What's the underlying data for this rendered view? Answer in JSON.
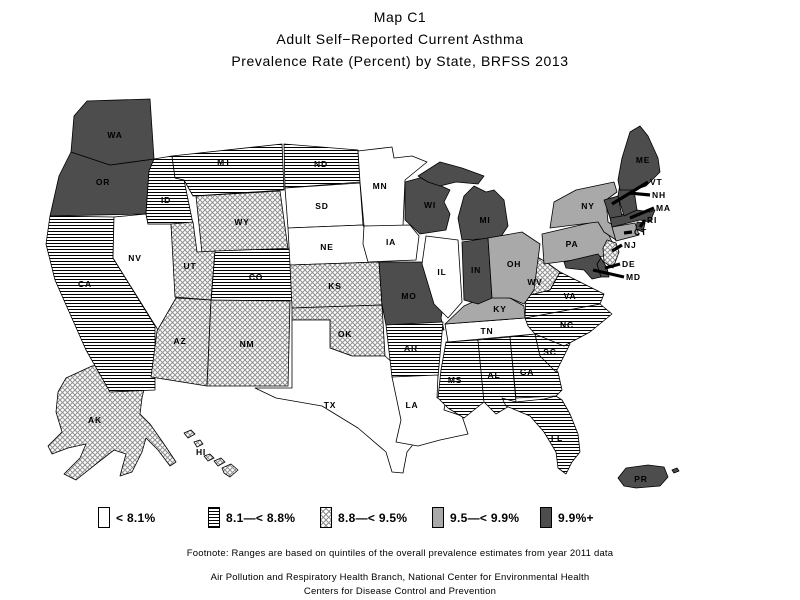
{
  "title": {
    "line1": "Map C1",
    "line2": "Adult Self−Reported Current Asthma",
    "line3": "Prevalence Rate (Percent) by State, BRFSS 2013"
  },
  "colors": {
    "quintile1_white": "#ffffff",
    "quintile4_gray": "#a9a9a9",
    "quintile5_dark": "#4d4d4d",
    "pattern_line_black": "#000000",
    "crosshatch_gray": "#909090",
    "border": "#000000"
  },
  "legend": {
    "items": [
      {
        "label": "< 8.1%",
        "quintile": 1,
        "pattern": "empty-white"
      },
      {
        "label": "8.1—< 8.8%",
        "quintile": 2,
        "pattern": "horizontal-lines"
      },
      {
        "label": "8.8—< 9.5%",
        "quintile": 3,
        "pattern": "crosshatch"
      },
      {
        "label": "9.5—< 9.9%",
        "quintile": 4,
        "pattern": "solid-gray"
      },
      {
        "label": "9.9%+",
        "quintile": 5,
        "pattern": "solid-dark"
      }
    ]
  },
  "footnote": "Footnote: Ranges are based on quintiles of the overall prevalence estimates from year 2011 data",
  "credits": {
    "line1": "Air Pollution and Respiratory Health Branch, National Center for Environmental Health",
    "line2": "Centers for Disease Control and Prevention"
  },
  "map": {
    "states": [
      {
        "abbr": "AK",
        "quintile": 3
      },
      {
        "abbr": "HI",
        "quintile": 3
      },
      {
        "abbr": "CA",
        "quintile": 2
      },
      {
        "abbr": "OR",
        "quintile": 5
      },
      {
        "abbr": "WA",
        "quintile": 5
      },
      {
        "abbr": "NV",
        "quintile": 1
      },
      {
        "abbr": "ID",
        "quintile": 2
      },
      {
        "abbr": "MT",
        "quintile": 2
      },
      {
        "abbr": "WY",
        "quintile": 3
      },
      {
        "abbr": "UT",
        "quintile": 3
      },
      {
        "abbr": "CO",
        "quintile": 2
      },
      {
        "abbr": "AZ",
        "quintile": 3
      },
      {
        "abbr": "NM",
        "quintile": 3
      },
      {
        "abbr": "ND",
        "quintile": 2
      },
      {
        "abbr": "SD",
        "quintile": 1
      },
      {
        "abbr": "NE",
        "quintile": 1
      },
      {
        "abbr": "KS",
        "quintile": 3
      },
      {
        "abbr": "OK",
        "quintile": 3
      },
      {
        "abbr": "TX",
        "quintile": 1
      },
      {
        "abbr": "MN",
        "quintile": 1
      },
      {
        "abbr": "IA",
        "quintile": 1
      },
      {
        "abbr": "MO",
        "quintile": 5
      },
      {
        "abbr": "AR",
        "quintile": 2
      },
      {
        "abbr": "LA",
        "quintile": 1
      },
      {
        "abbr": "MS",
        "quintile": 2
      },
      {
        "abbr": "AL",
        "quintile": 2
      },
      {
        "abbr": "GA",
        "quintile": 2
      },
      {
        "abbr": "FL",
        "quintile": 2
      },
      {
        "abbr": "SC",
        "quintile": 2
      },
      {
        "abbr": "TN",
        "quintile": 1
      },
      {
        "abbr": "KY",
        "quintile": 4
      },
      {
        "abbr": "NC",
        "quintile": 2
      },
      {
        "abbr": "VA",
        "quintile": 2
      },
      {
        "abbr": "WV",
        "quintile": 3
      },
      {
        "abbr": "IL",
        "quintile": 1
      },
      {
        "abbr": "WI",
        "quintile": 5
      },
      {
        "abbr": "MI",
        "quintile": 5
      },
      {
        "abbr": "IN",
        "quintile": 5
      },
      {
        "abbr": "OH",
        "quintile": 4
      },
      {
        "abbr": "PA",
        "quintile": 4
      },
      {
        "abbr": "NY",
        "quintile": 4
      },
      {
        "abbr": "MD",
        "quintile": 5,
        "callout": true
      },
      {
        "abbr": "DE",
        "quintile": 5,
        "callout": true
      },
      {
        "abbr": "NJ",
        "quintile": 3,
        "callout": true
      },
      {
        "abbr": "CT",
        "quintile": 4,
        "callout": true
      },
      {
        "abbr": "MA",
        "quintile": 5,
        "callout": true
      },
      {
        "abbr": "RI",
        "quintile": 5,
        "callout": true
      },
      {
        "abbr": "VT",
        "quintile": 5,
        "callout": true
      },
      {
        "abbr": "NH",
        "quintile": 5,
        "callout": true
      },
      {
        "abbr": "ME",
        "quintile": 5
      },
      {
        "abbr": "PR",
        "quintile": 5
      }
    ]
  }
}
